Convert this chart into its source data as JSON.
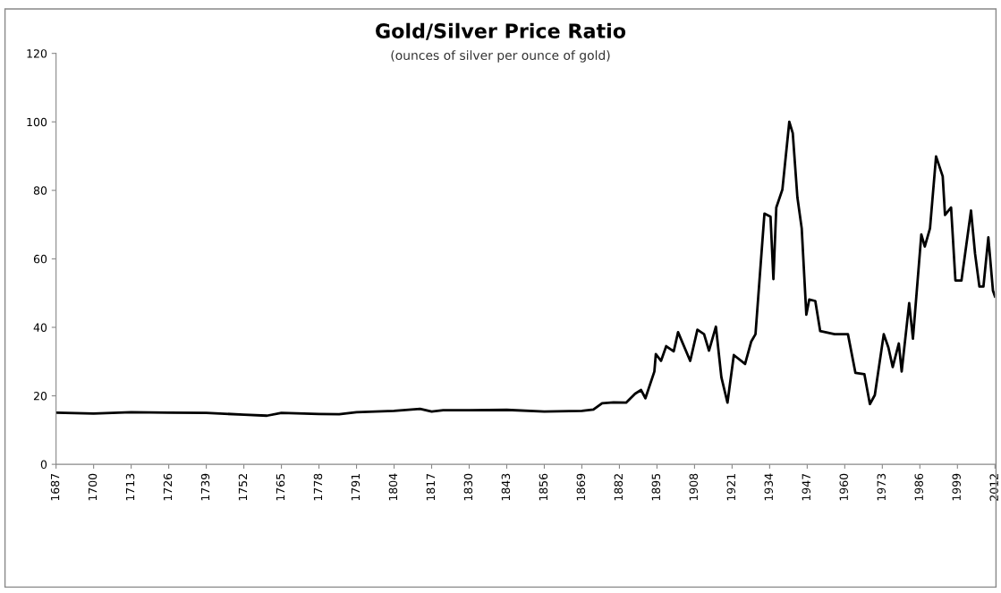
{
  "chart_data": {
    "type": "line",
    "title": "Gold/Silver Price Ratio",
    "subtitle": "(ounces of silver per ounce of gold)",
    "x": [
      1687,
      1700,
      1713,
      1726,
      1739,
      1752,
      1760,
      1765,
      1778,
      1785,
      1791,
      1804,
      1813,
      1817,
      1821,
      1830,
      1843,
      1856,
      1869,
      1873,
      1876,
      1880,
      1884.3,
      1887.4,
      1889.5,
      1891,
      1894.1,
      1894.6,
      1896.4,
      1898.2,
      1900.8,
      1902.3,
      1906.5,
      1909,
      1911.3,
      1913,
      1915.4,
      1917.3,
      1919.4,
      1921.6,
      1925.5,
      1927.6,
      1929.1,
      1931.2,
      1932.2,
      1934.3,
      1935.3,
      1936.3,
      1938.4,
      1940.8,
      1942,
      1943.6,
      1945.1,
      1946.7,
      1947.7,
      1949.8,
      1951.5,
      1956.5,
      1961.1,
      1963.7,
      1966.8,
      1968.7,
      1970.4,
      1973.5,
      1975.1,
      1976.6,
      1978.7,
      1979.7,
      1982.3,
      1983.6,
      1986.5,
      1987.7,
      1989.5,
      1991.6,
      1993.9,
      1994.7,
      1996.8,
      1998.3,
      2000.4,
      2003.7,
      2005.1,
      2006.6,
      2008,
      2009.7,
      2011.3,
      2012
    ],
    "series": [
      {
        "color": "#000000",
        "values": [
          15.1,
          14.8,
          15.2,
          15.1,
          15.0,
          14.5,
          14.2,
          15.0,
          14.7,
          14.6,
          15.2,
          15.6,
          16.2,
          15.4,
          15.8,
          15.8,
          15.9,
          15.4,
          15.6,
          16.0,
          17.8,
          18.1,
          18.0,
          20.6,
          21.7,
          19.3,
          27.1,
          32.2,
          30.2,
          34.5,
          33.0,
          38.6,
          30.2,
          39.3,
          38.0,
          33.2,
          40.2,
          25.4,
          18.0,
          31.9,
          29.3,
          35.8,
          38.0,
          61.9,
          73.2,
          72.3,
          54.1,
          75.0,
          80.2,
          100,
          96.7,
          78.0,
          68.9,
          43.7,
          48.1,
          47.7,
          38.9,
          38.0,
          38.0,
          26.7,
          26.3,
          17.6,
          20.2,
          38.0,
          34.1,
          28.4,
          35.3,
          27.1,
          47.1,
          36.7,
          67.1,
          63.6,
          68.9,
          89.9,
          84.1,
          72.8,
          75.0,
          53.7,
          53.7,
          74.1,
          61.5,
          51.9,
          51.9,
          66.3,
          50.7,
          49.0
        ]
      }
    ],
    "xlim": [
      1687,
      2012
    ],
    "xticks": [
      1687,
      1700,
      1713,
      1726,
      1739,
      1752,
      1765,
      1778,
      1791,
      1804,
      1817,
      1830,
      1843,
      1856,
      1869,
      1882,
      1895,
      1908,
      1921,
      1934,
      1947,
      1960,
      1973,
      1986,
      1999,
      2012
    ],
    "ylim": [
      0,
      120
    ],
    "yticks": [
      0,
      20,
      40,
      60,
      80,
      100,
      120
    ],
    "grid": false,
    "legend": false
  }
}
